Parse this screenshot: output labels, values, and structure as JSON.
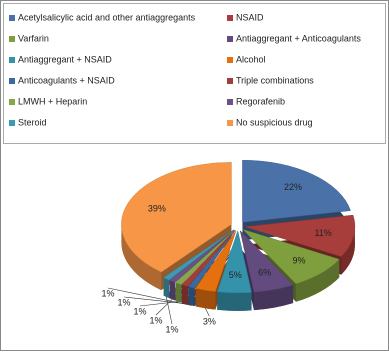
{
  "chart_data": {
    "type": "pie",
    "categories": [
      "Acetylsalicylic acid  and other antiaggregants",
      "NSAID",
      "Varfarin",
      "Antiaggregant + Anticoagulants",
      "Antiaggregant + NSAID",
      "Alcohol",
      "Anticoagulants + NSAID",
      "Triple combinations",
      "LMWH + Heparin",
      "Regorafenib",
      "Steroid",
      "No suspicious drug"
    ],
    "values": [
      22,
      11,
      9,
      6,
      5,
      3,
      1,
      1,
      1,
      1,
      1,
      39
    ],
    "value_labels": [
      "22%",
      "11%",
      "9%",
      "6%",
      "5%",
      "3%",
      "1%",
      "1%",
      "1%",
      "1%",
      "1%",
      "39%"
    ],
    "colors": [
      "#4a72a8",
      "#a83e3b",
      "#7f9f3e",
      "#634b80",
      "#3592ab",
      "#e4700f",
      "#3b6aa0",
      "#a33d3a",
      "#86a84a",
      "#6a5289",
      "#3d9ab3",
      "#f79646"
    ]
  }
}
